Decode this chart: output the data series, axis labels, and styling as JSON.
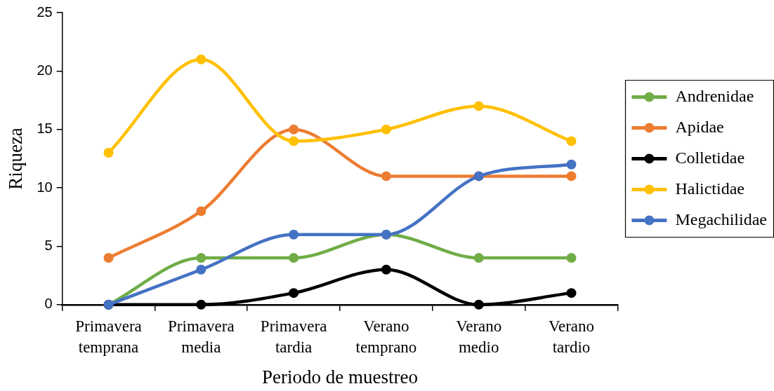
{
  "chart_data": {
    "type": "line",
    "xlabel": "Periodo de muestreo",
    "ylabel": "Riqueza",
    "categories": [
      "Primavera temprana",
      "Primavera media",
      "Primavera tardia",
      "Verano temprano",
      "Verano medio",
      "Verano tardio"
    ],
    "series": [
      {
        "name": "Andrenidae",
        "color": "#70ad47",
        "values": [
          0,
          4,
          4,
          6,
          4,
          4
        ]
      },
      {
        "name": "Apidae",
        "color": "#ed7d31",
        "values": [
          4,
          8,
          15,
          11,
          11,
          11
        ]
      },
      {
        "name": "Colletidae",
        "color": "#000000",
        "values": [
          0,
          0,
          1,
          3,
          0,
          1
        ]
      },
      {
        "name": "Halictidae",
        "color": "#ffc000",
        "values": [
          13,
          21,
          14,
          15,
          17,
          14
        ]
      },
      {
        "name": "Megachilidae",
        "color": "#4472c4",
        "values": [
          0,
          3,
          6,
          6,
          11,
          12
        ]
      }
    ],
    "ylim": [
      0,
      25
    ],
    "yticks": [
      0,
      5,
      10,
      15,
      20,
      25
    ],
    "grid": false,
    "legend": "right",
    "marker": "circle",
    "line_style": "solid"
  }
}
